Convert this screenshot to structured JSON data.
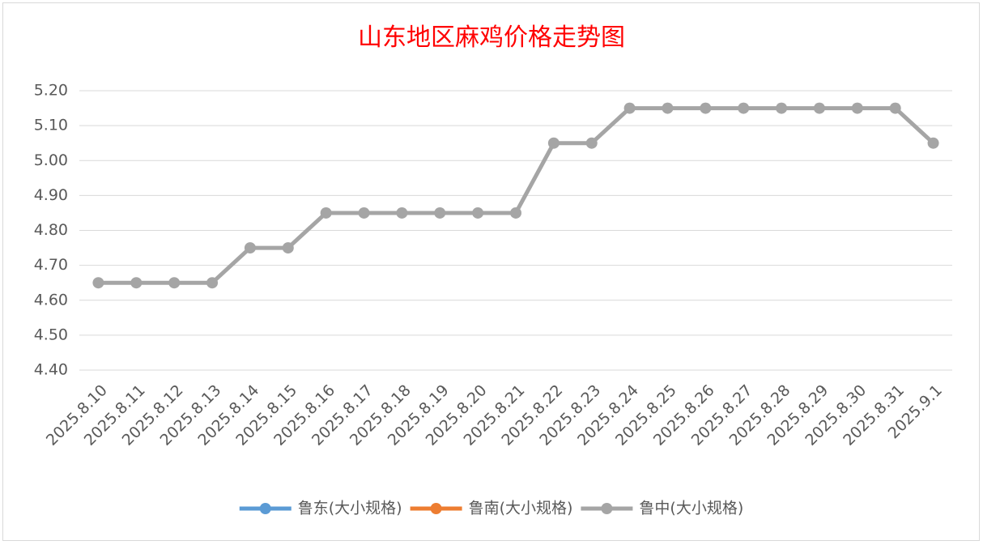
{
  "chart_data": {
    "type": "line",
    "title": "山东地区麻鸡价格走势图",
    "categories": [
      "2025.8.10",
      "2025.8.11",
      "2025.8.12",
      "2025.8.13",
      "2025.8.14",
      "2025.8.15",
      "2025.8.16",
      "2025.8.17",
      "2025.8.18",
      "2025.8.19",
      "2025.8.20",
      "2025.8.21",
      "2025.8.22",
      "2025.8.23",
      "2025.8.24",
      "2025.8.25",
      "2025.8.26",
      "2025.8.27",
      "2025.8.28",
      "2025.8.29",
      "2025.8.30",
      "2025.8.31",
      "2025.9.1"
    ],
    "series": [
      {
        "name": "鲁东(大小规格)",
        "color": "#5b9bd5",
        "values": [
          null,
          null,
          null,
          null,
          null,
          null,
          null,
          null,
          null,
          null,
          null,
          null,
          null,
          null,
          null,
          null,
          null,
          null,
          null,
          null,
          null,
          null,
          null
        ]
      },
      {
        "name": "鲁南(大小规格)",
        "color": "#ed7d31",
        "values": [
          null,
          null,
          null,
          null,
          null,
          null,
          null,
          null,
          null,
          null,
          null,
          null,
          null,
          null,
          null,
          null,
          null,
          null,
          null,
          null,
          null,
          null,
          null
        ]
      },
      {
        "name": "鲁中(大小规格)",
        "color": "#a5a5a5",
        "values": [
          4.65,
          4.65,
          4.65,
          4.65,
          4.75,
          4.75,
          4.85,
          4.85,
          4.85,
          4.85,
          4.85,
          4.85,
          5.05,
          5.05,
          5.15,
          5.15,
          5.15,
          5.15,
          5.15,
          5.15,
          5.15,
          5.15,
          5.05
        ]
      }
    ],
    "ylim": [
      4.4,
      5.2
    ],
    "yticks": [
      {
        "value": 4.4,
        "label": "4.40"
      },
      {
        "value": 4.5,
        "label": "4.50"
      },
      {
        "value": 4.6,
        "label": "4.60"
      },
      {
        "value": 4.7,
        "label": "4.70"
      },
      {
        "value": 4.8,
        "label": "4.80"
      },
      {
        "value": 4.9,
        "label": "4.90"
      },
      {
        "value": 5.0,
        "label": "5.00"
      },
      {
        "value": 5.1,
        "label": "5.10"
      },
      {
        "value": 5.2,
        "label": "5.20"
      }
    ],
    "grid": true,
    "legend": "bottom"
  }
}
